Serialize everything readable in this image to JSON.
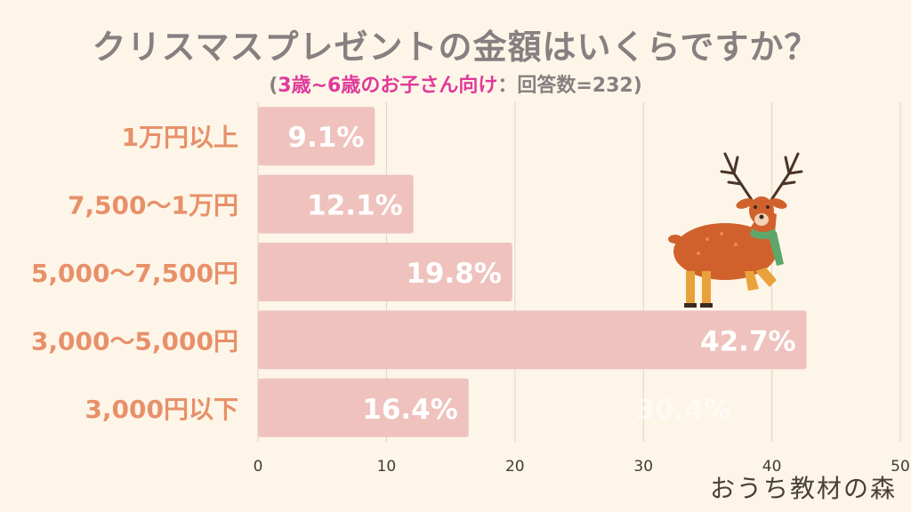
{
  "header": {
    "title": "クリスマスプレゼントの金額はいくらですか？",
    "subtitle_open": "(",
    "subtitle_accent": "3歳~6歳のお子さん向け",
    "subtitle_meta": "：回答数=232)"
  },
  "brand": {
    "name": "おうち教材の森"
  },
  "colors": {
    "background": "#fdf6e8",
    "bar": "#efc2bd",
    "category_label": "#e8906a",
    "value_label": "#ffffff",
    "title": "#877f80",
    "accent": "#e0399a"
  },
  "illustration": {
    "icon": "reindeer-icon"
  },
  "chart_data": {
    "type": "bar",
    "orientation": "horizontal",
    "categories": [
      "1万円以上",
      "7,500〜1万円",
      "5,000〜7,500円",
      "3,000〜5,000円",
      "3,000円以下"
    ],
    "values": [
      9.1,
      12.1,
      19.8,
      42.7,
      16.4
    ],
    "value_labels": [
      "9.1%",
      "12.1%",
      "19.8%",
      "42.7%",
      "16.4%"
    ],
    "faint_annotation": "30.4%",
    "xlim": [
      0,
      50
    ],
    "xticks": [
      0,
      10,
      20,
      30,
      40,
      50
    ],
    "grid": true
  }
}
